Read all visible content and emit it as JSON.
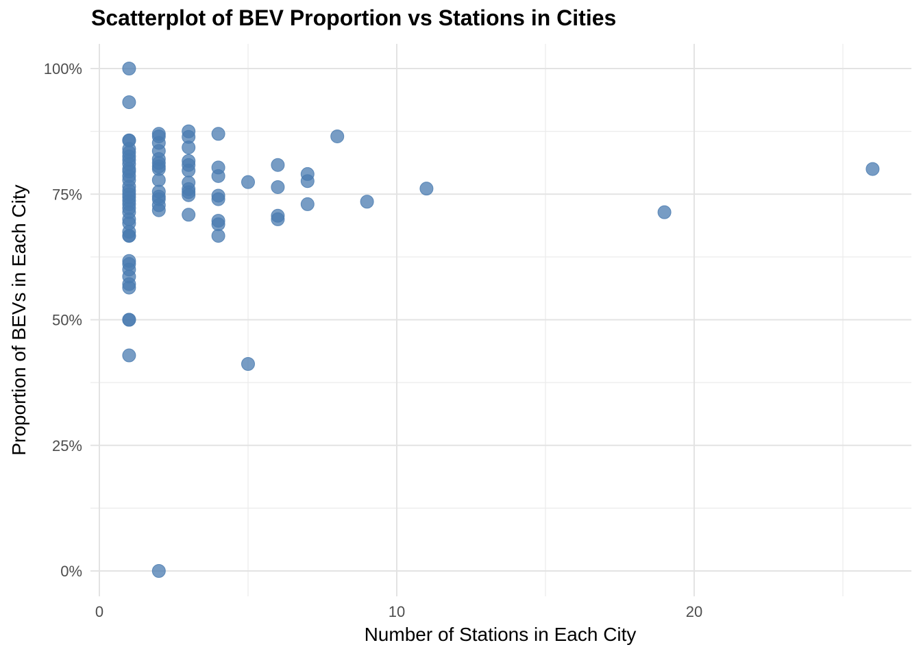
{
  "chart_data": {
    "type": "scatter",
    "title": "Scatterplot of BEV Proportion vs Stations in Cities",
    "xlabel": "Number of Stations in Each City",
    "ylabel": "Proportion of BEVs in Each City",
    "xlim": [
      0,
      27.5
    ],
    "ylim": [
      -0.04,
      1.05
    ],
    "x_ticks": [
      0,
      10,
      20
    ],
    "x_tick_labels": [
      "0",
      "10",
      "20"
    ],
    "y_ticks": [
      0,
      0.25,
      0.5,
      0.75,
      1.0
    ],
    "y_tick_labels": [
      "0%",
      "25%",
      "50%",
      "75%",
      "100%"
    ],
    "grid": true,
    "point_color": "#4a7bb0",
    "points": [
      {
        "x": 1,
        "y": 1.0
      },
      {
        "x": 1,
        "y": 0.933
      },
      {
        "x": 1,
        "y": 0.857
      },
      {
        "x": 1,
        "y": 0.857
      },
      {
        "x": 1,
        "y": 0.84
      },
      {
        "x": 1,
        "y": 0.833
      },
      {
        "x": 1,
        "y": 0.825
      },
      {
        "x": 1,
        "y": 0.818
      },
      {
        "x": 1,
        "y": 0.81
      },
      {
        "x": 1,
        "y": 0.8
      },
      {
        "x": 1,
        "y": 0.795
      },
      {
        "x": 1,
        "y": 0.786
      },
      {
        "x": 1,
        "y": 0.778
      },
      {
        "x": 1,
        "y": 0.765
      },
      {
        "x": 1,
        "y": 0.757
      },
      {
        "x": 1,
        "y": 0.75
      },
      {
        "x": 1,
        "y": 0.744
      },
      {
        "x": 1,
        "y": 0.737
      },
      {
        "x": 1,
        "y": 0.73
      },
      {
        "x": 1,
        "y": 0.722
      },
      {
        "x": 1,
        "y": 0.714
      },
      {
        "x": 1,
        "y": 0.7
      },
      {
        "x": 1,
        "y": 0.692
      },
      {
        "x": 1,
        "y": 0.675
      },
      {
        "x": 1,
        "y": 0.667
      },
      {
        "x": 1,
        "y": 0.667
      },
      {
        "x": 1,
        "y": 0.617
      },
      {
        "x": 1,
        "y": 0.611
      },
      {
        "x": 1,
        "y": 0.6
      },
      {
        "x": 1,
        "y": 0.586
      },
      {
        "x": 1,
        "y": 0.571
      },
      {
        "x": 1,
        "y": 0.564
      },
      {
        "x": 1,
        "y": 0.5
      },
      {
        "x": 1,
        "y": 0.5
      },
      {
        "x": 1,
        "y": 0.429
      },
      {
        "x": 2,
        "y": 0.87
      },
      {
        "x": 2,
        "y": 0.865
      },
      {
        "x": 2,
        "y": 0.852
      },
      {
        "x": 2,
        "y": 0.836
      },
      {
        "x": 2,
        "y": 0.82
      },
      {
        "x": 2,
        "y": 0.812
      },
      {
        "x": 2,
        "y": 0.805
      },
      {
        "x": 2,
        "y": 0.8
      },
      {
        "x": 2,
        "y": 0.778
      },
      {
        "x": 2,
        "y": 0.755
      },
      {
        "x": 2,
        "y": 0.745
      },
      {
        "x": 2,
        "y": 0.74
      },
      {
        "x": 2,
        "y": 0.728
      },
      {
        "x": 2,
        "y": 0.718
      },
      {
        "x": 2,
        "y": 0.0
      },
      {
        "x": 3,
        "y": 0.875
      },
      {
        "x": 3,
        "y": 0.864
      },
      {
        "x": 3,
        "y": 0.843
      },
      {
        "x": 3,
        "y": 0.816
      },
      {
        "x": 3,
        "y": 0.808
      },
      {
        "x": 3,
        "y": 0.797
      },
      {
        "x": 3,
        "y": 0.773
      },
      {
        "x": 3,
        "y": 0.76
      },
      {
        "x": 3,
        "y": 0.754
      },
      {
        "x": 3,
        "y": 0.748
      },
      {
        "x": 3,
        "y": 0.709
      },
      {
        "x": 4,
        "y": 0.87
      },
      {
        "x": 4,
        "y": 0.803
      },
      {
        "x": 4,
        "y": 0.786
      },
      {
        "x": 4,
        "y": 0.747
      },
      {
        "x": 4,
        "y": 0.74
      },
      {
        "x": 4,
        "y": 0.697
      },
      {
        "x": 4,
        "y": 0.69
      },
      {
        "x": 4,
        "y": 0.667
      },
      {
        "x": 5,
        "y": 0.774
      },
      {
        "x": 5,
        "y": 0.412
      },
      {
        "x": 6,
        "y": 0.808
      },
      {
        "x": 6,
        "y": 0.764
      },
      {
        "x": 6,
        "y": 0.707
      },
      {
        "x": 6,
        "y": 0.7
      },
      {
        "x": 7,
        "y": 0.79
      },
      {
        "x": 7,
        "y": 0.776
      },
      {
        "x": 7,
        "y": 0.73
      },
      {
        "x": 8,
        "y": 0.865
      },
      {
        "x": 9,
        "y": 0.735
      },
      {
        "x": 11,
        "y": 0.761
      },
      {
        "x": 19,
        "y": 0.714
      },
      {
        "x": 26,
        "y": 0.8
      }
    ]
  }
}
